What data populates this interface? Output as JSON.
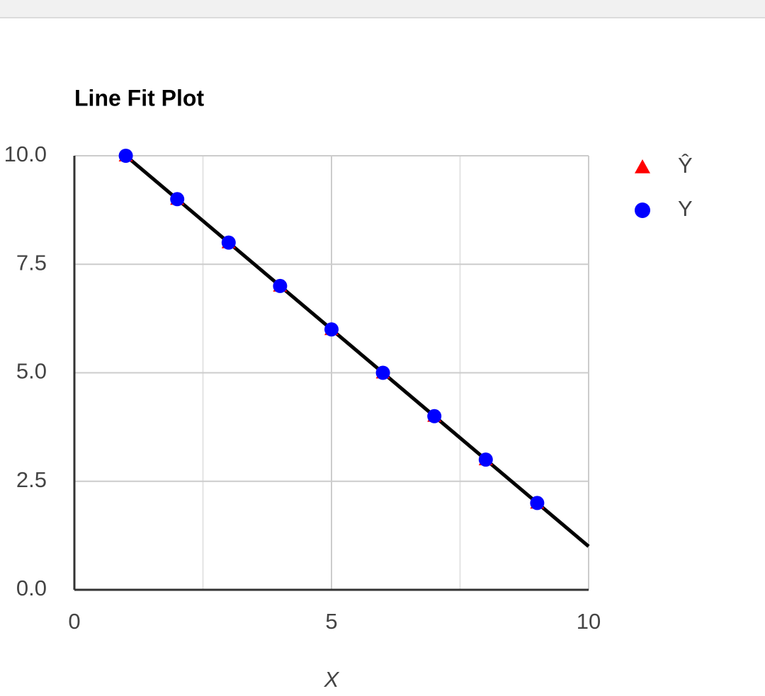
{
  "chart_data": {
    "type": "scatter",
    "title": "Line Fit Plot",
    "xlabel": "X",
    "x": [
      1,
      2,
      3,
      4,
      5,
      6,
      7,
      8,
      9
    ],
    "series": [
      {
        "name": "Ŷ",
        "color": "#ff0000",
        "marker": "triangle",
        "values": [
          10,
          9,
          8,
          7,
          6,
          5,
          4,
          3,
          2
        ]
      },
      {
        "name": "Y",
        "color": "#0000ff",
        "marker": "circle",
        "values": [
          10,
          9,
          8,
          7,
          6,
          5,
          4,
          3,
          2
        ]
      }
    ],
    "trendline": {
      "color": "#000000",
      "x": [
        1,
        10
      ],
      "values": [
        10,
        1
      ]
    },
    "xlim": [
      0,
      10
    ],
    "xticks": [
      0,
      5,
      10
    ],
    "xminorticks": [
      2.5,
      7.5
    ],
    "ylim": [
      0,
      10
    ],
    "yticks": [
      {
        "value": 0,
        "label": "0.0"
      },
      {
        "value": 2.5,
        "label": "2.5"
      },
      {
        "value": 5,
        "label": "5.0"
      },
      {
        "value": 7.5,
        "label": "7.5"
      },
      {
        "value": 10,
        "label": "10.0"
      }
    ],
    "grid": true,
    "legend": "right"
  }
}
